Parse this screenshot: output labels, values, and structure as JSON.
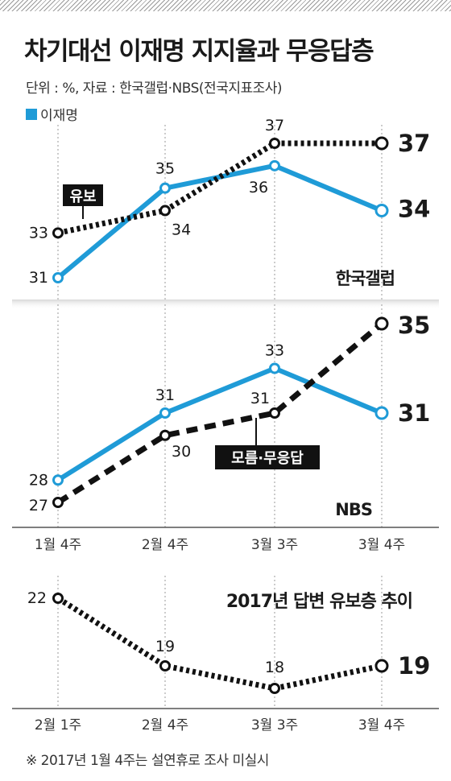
{
  "header": {
    "title": "차기대선 이재명 지지율과 무응답층",
    "unit_note": "단위 : %, 자료 : 한국갤럽·NBS(전국지표조사)",
    "legend_label": "이재명"
  },
  "footnote": "※ 2017년 1월 4주는 설연휴로 조사 미실시",
  "colors": {
    "lee": "#1f9bd7",
    "dotted": "#111111",
    "grid": "#999999"
  },
  "chart_data": [
    {
      "type": "line",
      "source_label": "한국갤럽",
      "categories": [
        "1월 4주",
        "2월 4주",
        "3월 3주",
        "3월 4주"
      ],
      "series": [
        {
          "name": "이재명",
          "values": [
            31,
            35,
            36,
            34
          ],
          "color": "#1f9bd7",
          "style": "solid"
        },
        {
          "name": "유보",
          "values": [
            33,
            34,
            37,
            37
          ],
          "color": "#111111",
          "style": "dotted"
        }
      ]
    },
    {
      "type": "line",
      "source_label": "NBS",
      "categories": [
        "1월 4주",
        "2월 4주",
        "3월 3주",
        "3월 4주"
      ],
      "series": [
        {
          "name": "이재명",
          "values": [
            28,
            31,
            33,
            31
          ],
          "color": "#1f9bd7",
          "style": "solid"
        },
        {
          "name": "모름·무응답",
          "values": [
            27,
            30,
            31,
            35
          ],
          "color": "#111111",
          "style": "dashed"
        }
      ]
    },
    {
      "type": "line",
      "title": "2017년 답변 유보층 추이",
      "categories": [
        "2월 1주",
        "2월 4주",
        "3월 3주",
        "3월 4주"
      ],
      "series": [
        {
          "name": "",
          "values": [
            22,
            19,
            18,
            19
          ],
          "color": "#111111",
          "style": "dotted"
        }
      ]
    }
  ]
}
